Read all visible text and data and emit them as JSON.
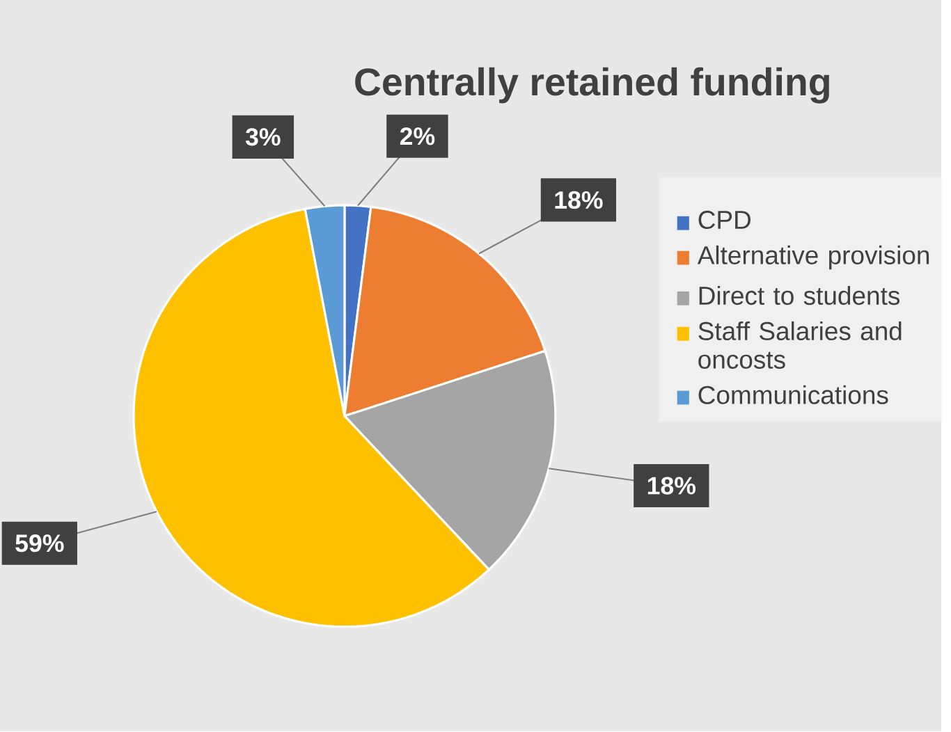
{
  "chart_data": {
    "type": "pie",
    "title": "Centrally retained funding",
    "categories": [
      "CPD",
      "Alternative provision",
      "Direct to students",
      "Staff Salaries and oncosts",
      "Communications"
    ],
    "values": [
      2,
      18,
      18,
      59,
      3
    ],
    "colors": [
      "#4472c4",
      "#ed7d31",
      "#a5a5a5",
      "#ffc000",
      "#5b9bd5"
    ],
    "value_labels": [
      "2%",
      "18%",
      "18%",
      "59%",
      "3%"
    ],
    "legend": "right"
  }
}
